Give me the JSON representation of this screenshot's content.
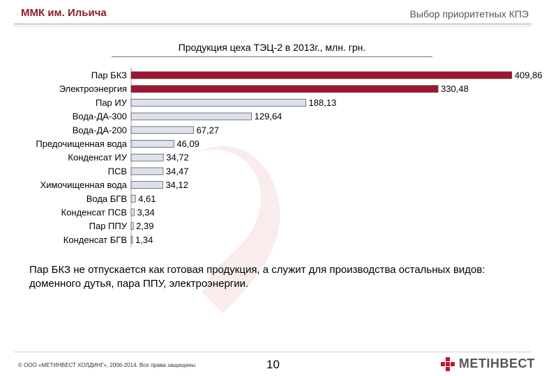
{
  "header": {
    "left_title": "ММК им. Ильича",
    "right_title": "Выбор приоритетных КПЭ"
  },
  "chart_data": {
    "type": "bar",
    "orientation": "horizontal",
    "title": "Продукция цеха ТЭЦ-2 в 2013г., млн. грн.",
    "categories": [
      "Пар БКЗ",
      "Электроэнергия",
      "Пар ИУ",
      "Вода-ДА-300",
      "Вода-ДА-200",
      "Предочищенная  вода",
      "Конденсат ИУ",
      "ПСВ",
      "Химочищенная вода",
      "Вода БГВ",
      "Конденсат ПСВ",
      "Пар ППУ",
      "Конденсат БГВ"
    ],
    "values": [
      409.86,
      330.48,
      188.13,
      129.64,
      67.27,
      46.09,
      34.72,
      34.47,
      34.12,
      4.61,
      3.34,
      2.39,
      1.34
    ],
    "value_labels": [
      "409,86",
      "330,48",
      "188,13",
      "129,64",
      "67,27",
      "46,09",
      "34,72",
      "34,47",
      "34,12",
      "4,61",
      "3,34",
      "2,39",
      "1,34"
    ],
    "colors": [
      "#a01530",
      "#a01530",
      "#dde1ec",
      "#dde1ec",
      "#dde1ec",
      "#dde1ec",
      "#dde1ec",
      "#dde1ec",
      "#dde1ec",
      "#dde1ec",
      "#dde1ec",
      "#dde1ec",
      "#dde1ec"
    ],
    "xlim": [
      0,
      410
    ],
    "grid": false
  },
  "note": "Пар БКЗ не отпускается как готовая продукция, а служит для производства остальных видов: доменного дутья, пара ППУ, электроэнергии.",
  "footer": {
    "copyright": "© ООО «МЕТИНВЕСТ ХОЛДИНГ», 2006-2014. Все права защищены",
    "page_number": "10",
    "logo_text": "МЕТІНВЕСТ",
    "logo_icon": "metinvest-logo-icon",
    "accent_color": "#c8102e"
  }
}
